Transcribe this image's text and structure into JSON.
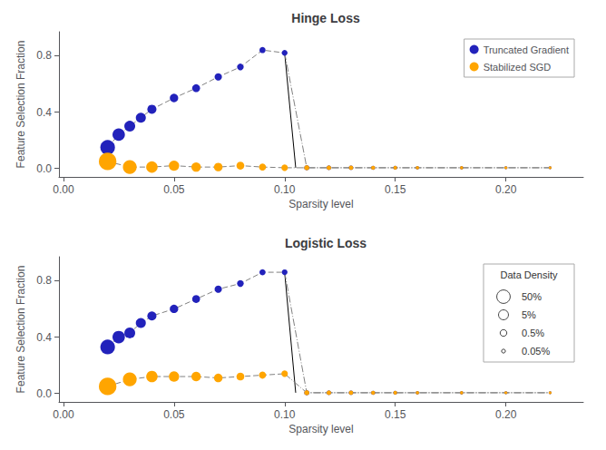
{
  "chart_data": [
    {
      "type": "scatter",
      "title": "Hinge Loss",
      "xlabel": "Sparsity level",
      "ylabel": "Feature Selection Fraction",
      "xlim": [
        -0.002,
        0.235
      ],
      "ylim": [
        -0.06,
        0.97
      ],
      "xticks": [
        {
          "value": 0.0,
          "label": "0.00"
        },
        {
          "value": 0.05,
          "label": "0.05"
        },
        {
          "value": 0.1,
          "label": "0.10"
        },
        {
          "value": 0.15,
          "label": "0.15"
        },
        {
          "value": 0.2,
          "label": "0.20"
        }
      ],
      "yticks": [
        {
          "value": 0.0,
          "label": "0.0"
        },
        {
          "value": 0.4,
          "label": "0.4"
        },
        {
          "value": 0.8,
          "label": "0.8"
        }
      ],
      "grid": false,
      "legend": "upper right",
      "series": [
        {
          "type": "line",
          "color": "gray",
          "line_style": "dashed",
          "x": [
            0.02,
            0.025,
            0.03,
            0.035,
            0.04,
            0.05,
            0.06,
            0.07,
            0.08,
            0.09,
            0.1
          ],
          "values": [
            0.15,
            0.24,
            0.3,
            0.36,
            0.42,
            0.5,
            0.57,
            0.65,
            0.72,
            0.84,
            0.82
          ]
        },
        {
          "type": "line",
          "color": "gray",
          "line_style": "dashed",
          "x": [
            0.02,
            0.03,
            0.04,
            0.05,
            0.06,
            0.07,
            0.08,
            0.09,
            0.1
          ],
          "values": [
            0.05,
            0.01,
            0.01,
            0.02,
            0.01,
            0.01,
            0.02,
            0.01,
            0.005
          ]
        },
        {
          "type": "line",
          "color": "black",
          "line_style": "solid",
          "x": [
            0.1,
            0.105
          ],
          "values": [
            0.82,
            0.005
          ]
        },
        {
          "type": "line",
          "color": "gray",
          "line_style": "dashdot",
          "x": [
            0.1,
            0.11,
            0.12,
            0.13,
            0.14,
            0.15,
            0.16,
            0.18,
            0.2,
            0.22
          ],
          "values": [
            0.82,
            0.005,
            0.005,
            0.005,
            0.005,
            0.005,
            0.005,
            0.005,
            0.005,
            0.005
          ]
        },
        {
          "type": "line",
          "color": "gray",
          "line_style": "dashdot",
          "x": [
            0.1,
            0.11,
            0.12,
            0.13,
            0.14,
            0.15,
            0.16,
            0.18,
            0.2,
            0.22
          ],
          "values": [
            0.005,
            0.005,
            0.005,
            0.005,
            0.005,
            0.005,
            0.005,
            0.005,
            0.005,
            0.005
          ]
        },
        {
          "type": "scatter",
          "name": "Truncated Gradient",
          "color": "#2222bb",
          "marker": "circle",
          "x": [
            0.02,
            0.025,
            0.03,
            0.035,
            0.04,
            0.05,
            0.06,
            0.07,
            0.08,
            0.09,
            0.1,
            0.11,
            0.12,
            0.13,
            0.14,
            0.15,
            0.16,
            0.18,
            0.2,
            0.22
          ],
          "values": [
            0.15,
            0.24,
            0.3,
            0.36,
            0.42,
            0.5,
            0.57,
            0.65,
            0.72,
            0.84,
            0.82,
            0.005,
            0.005,
            0.005,
            0.005,
            0.005,
            0.005,
            0.005,
            0.005,
            0.005
          ],
          "sizes": [
            180,
            130,
            100,
            85,
            70,
            60,
            52,
            45,
            38,
            32,
            28,
            22,
            18,
            16,
            14,
            12,
            10,
            9,
            8,
            7
          ]
        },
        {
          "type": "scatter",
          "name": "Stabilized SGD",
          "color": "#FFA500",
          "marker": "circle",
          "x": [
            0.02,
            0.03,
            0.04,
            0.05,
            0.06,
            0.07,
            0.08,
            0.09,
            0.1,
            0.11,
            0.12,
            0.13,
            0.14,
            0.15,
            0.16,
            0.18,
            0.2,
            0.22
          ],
          "values": [
            0.05,
            0.01,
            0.01,
            0.02,
            0.01,
            0.01,
            0.02,
            0.01,
            0.005,
            0.005,
            0.005,
            0.005,
            0.005,
            0.005,
            0.005,
            0.005,
            0.005,
            0.005
          ],
          "sizes": [
            260,
            160,
            110,
            90,
            75,
            62,
            52,
            42,
            35,
            22,
            18,
            16,
            14,
            12,
            10,
            9,
            8,
            7
          ]
        }
      ]
    },
    {
      "type": "scatter",
      "title": "Logistic Loss",
      "xlabel": "Sparsity level",
      "ylabel": "Feature Selection Fraction",
      "xlim": [
        -0.002,
        0.235
      ],
      "ylim": [
        -0.06,
        0.97
      ],
      "xticks": [
        {
          "value": 0.0,
          "label": "0.00"
        },
        {
          "value": 0.05,
          "label": "0.05"
        },
        {
          "value": 0.1,
          "label": "0.10"
        },
        {
          "value": 0.15,
          "label": "0.15"
        },
        {
          "value": 0.2,
          "label": "0.20"
        }
      ],
      "yticks": [
        {
          "value": 0.0,
          "label": "0.0"
        },
        {
          "value": 0.4,
          "label": "0.4"
        },
        {
          "value": 0.8,
          "label": "0.8"
        }
      ],
      "grid": false,
      "legend": "upper right",
      "density_legend": {
        "title": "Data Density",
        "labels": [
          "50%",
          "5%",
          "0.5%",
          "0.05%"
        ],
        "sizes": [
          220,
          120,
          55,
          18
        ],
        "color": "#444444"
      },
      "series": [
        {
          "type": "line",
          "color": "gray",
          "line_style": "dashed",
          "x": [
            0.02,
            0.025,
            0.03,
            0.035,
            0.04,
            0.05,
            0.06,
            0.07,
            0.08,
            0.09,
            0.1
          ],
          "values": [
            0.33,
            0.4,
            0.43,
            0.5,
            0.55,
            0.6,
            0.67,
            0.74,
            0.78,
            0.86,
            0.86
          ]
        },
        {
          "type": "line",
          "color": "gray",
          "line_style": "dashed",
          "x": [
            0.02,
            0.03,
            0.04,
            0.05,
            0.06,
            0.07,
            0.08,
            0.09,
            0.1
          ],
          "values": [
            0.05,
            0.1,
            0.12,
            0.12,
            0.12,
            0.11,
            0.12,
            0.13,
            0.14
          ]
        },
        {
          "type": "line",
          "color": "black",
          "line_style": "solid",
          "x": [
            0.1,
            0.105
          ],
          "values": [
            0.86,
            0.005
          ]
        },
        {
          "type": "line",
          "color": "gray",
          "line_style": "dashdot",
          "x": [
            0.1,
            0.11,
            0.12,
            0.13,
            0.14,
            0.15,
            0.16,
            0.18,
            0.2,
            0.22
          ],
          "values": [
            0.86,
            0.005,
            0.005,
            0.005,
            0.005,
            0.005,
            0.005,
            0.005,
            0.005,
            0.005
          ]
        },
        {
          "type": "line",
          "color": "gray",
          "line_style": "dashdot",
          "x": [
            0.1,
            0.11,
            0.12,
            0.13,
            0.14,
            0.15,
            0.16,
            0.18,
            0.2,
            0.22
          ],
          "values": [
            0.14,
            0.005,
            0.005,
            0.005,
            0.005,
            0.005,
            0.005,
            0.005,
            0.005,
            0.005
          ]
        },
        {
          "type": "scatter",
          "color": "#2222bb",
          "marker": "circle",
          "x": [
            0.02,
            0.025,
            0.03,
            0.035,
            0.04,
            0.05,
            0.06,
            0.07,
            0.08,
            0.09,
            0.1,
            0.11,
            0.12,
            0.13,
            0.14,
            0.15,
            0.16,
            0.18,
            0.2,
            0.22
          ],
          "values": [
            0.33,
            0.4,
            0.43,
            0.5,
            0.55,
            0.6,
            0.67,
            0.74,
            0.78,
            0.86,
            0.86,
            0.005,
            0.005,
            0.005,
            0.005,
            0.005,
            0.005,
            0.005,
            0.005,
            0.005
          ],
          "sizes": [
            180,
            130,
            100,
            85,
            70,
            60,
            52,
            45,
            38,
            32,
            28,
            22,
            18,
            16,
            14,
            12,
            10,
            9,
            8,
            7
          ]
        },
        {
          "type": "scatter",
          "color": "#FFA500",
          "marker": "circle",
          "x": [
            0.02,
            0.03,
            0.04,
            0.05,
            0.06,
            0.07,
            0.08,
            0.09,
            0.1,
            0.11,
            0.12,
            0.13,
            0.14,
            0.15,
            0.16,
            0.18,
            0.2,
            0.22
          ],
          "values": [
            0.05,
            0.1,
            0.12,
            0.12,
            0.12,
            0.11,
            0.12,
            0.13,
            0.14,
            0.005,
            0.005,
            0.005,
            0.005,
            0.005,
            0.005,
            0.005,
            0.005,
            0.005
          ],
          "sizes": [
            260,
            160,
            110,
            90,
            75,
            62,
            52,
            42,
            35,
            22,
            18,
            16,
            14,
            12,
            10,
            9,
            8,
            7
          ]
        }
      ]
    }
  ]
}
